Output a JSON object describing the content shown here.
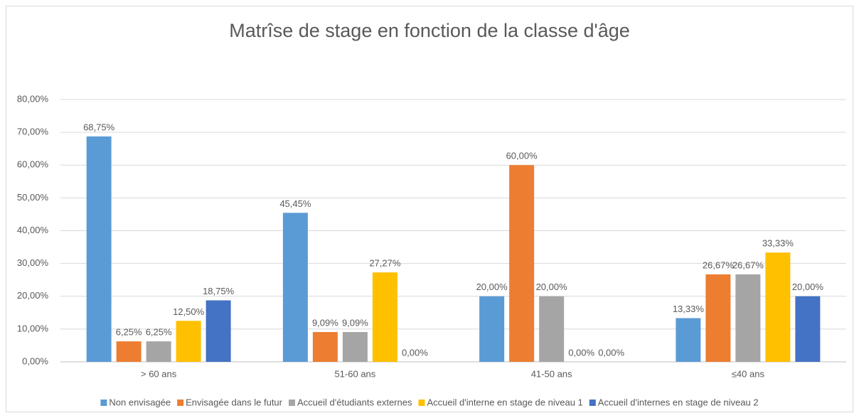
{
  "chart_data": {
    "type": "bar",
    "title": "Matrîse de stage en fonction de la classe d'âge",
    "categories": [
      "> 60 ans",
      "51-60 ans",
      "41-50 ans",
      "≤40 ans"
    ],
    "series": [
      {
        "name": "Non envisagée",
        "color": "#5b9bd5",
        "values": [
          68.75,
          45.45,
          20,
          13.33
        ],
        "value_labels": [
          "68,75%",
          "45,45%",
          "20,00%",
          "13,33%"
        ]
      },
      {
        "name": "Envisagée dans le futur",
        "color": "#ed7d31",
        "values": [
          6.25,
          9.09,
          60,
          26.67
        ],
        "value_labels": [
          "6,25%",
          "9,09%",
          "60,00%",
          "26,67%"
        ]
      },
      {
        "name": "Accueil d'étudiants externes",
        "color": "#a5a5a5",
        "values": [
          6.25,
          9.09,
          20,
          26.67
        ],
        "value_labels": [
          "6,25%",
          "9,09%",
          "20,00%",
          "26,67%"
        ]
      },
      {
        "name": "Accueil d'interne en stage de niveau 1",
        "color": "#ffc000",
        "values": [
          12.5,
          27.27,
          0,
          33.33
        ],
        "value_labels": [
          "12,50%",
          "27,27%",
          "0,00%",
          "33,33%"
        ]
      },
      {
        "name": "Accueil d'internes en stage de niveau 2",
        "color": "#4472c4",
        "values": [
          18.75,
          0,
          0,
          20
        ],
        "value_labels": [
          "18,75%",
          "0,00%",
          "0,00%",
          "20,00%"
        ]
      }
    ],
    "ylim": [
      0,
      80
    ],
    "yticks": [
      {
        "value": 0,
        "label": "0,00%"
      },
      {
        "value": 10,
        "label": "10,00%"
      },
      {
        "value": 20,
        "label": "20,00%"
      },
      {
        "value": 30,
        "label": "30,00%"
      },
      {
        "value": 40,
        "label": "40,00%"
      },
      {
        "value": 50,
        "label": "50,00%"
      },
      {
        "value": 60,
        "label": "60,00%"
      },
      {
        "value": 70,
        "label": "70,00%"
      },
      {
        "value": 80,
        "label": "80,00%"
      }
    ],
    "grid": true,
    "legend": "bottom"
  }
}
